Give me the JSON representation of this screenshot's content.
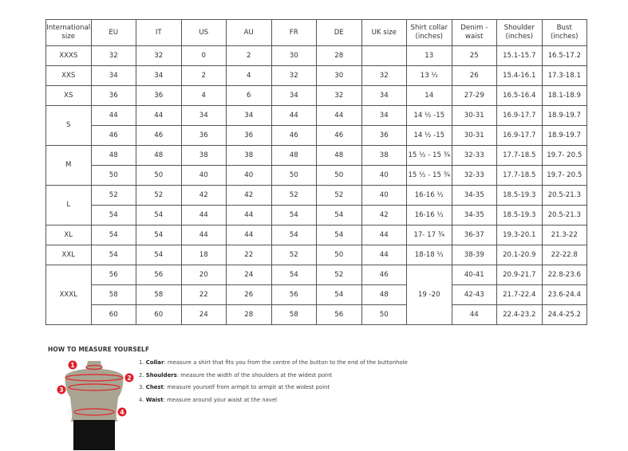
{
  "headers": [
    "International size",
    "EU",
    "IT",
    "US",
    "AU",
    "FR",
    "DE",
    "UK size",
    "Shirt collar (inches)",
    "Denim - waist",
    "Shoulder (inches)",
    "Bust (inches)"
  ],
  "groups": [
    {
      "size": "XXXS",
      "rows": [
        {
          "eu": "32",
          "it": "32",
          "us": "0",
          "au": "2",
          "fr": "30",
          "de": "28",
          "uk": "",
          "collar": "13",
          "waist": "25",
          "shoulder": "15.1-15.7",
          "bust": "16.5-17.2"
        }
      ]
    },
    {
      "size": "XXS",
      "rows": [
        {
          "eu": "34",
          "it": "34",
          "us": "2",
          "au": "4",
          "fr": "32",
          "de": "30",
          "uk": "32",
          "collar": "13 ½",
          "waist": "26",
          "shoulder": "15.4-16.1",
          "bust": "17.3-18.1"
        }
      ]
    },
    {
      "size": "XS",
      "rows": [
        {
          "eu": "36",
          "it": "36",
          "us": "4",
          "au": "6",
          "fr": "34",
          "de": "32",
          "uk": "34",
          "collar": "14",
          "waist": "27-29",
          "shoulder": "16.5-16.4",
          "bust": "18.1-18.9"
        }
      ]
    },
    {
      "size": "S",
      "rows": [
        {
          "eu": "44",
          "it": "44",
          "us": "34",
          "au": "34",
          "fr": "44",
          "de": "44",
          "uk": "34",
          "collar": "14 ½ -15",
          "waist": "30-31",
          "shoulder": "16.9-17.7",
          "bust": "18.9-19.7"
        },
        {
          "eu": "46",
          "it": "46",
          "us": "36",
          "au": "36",
          "fr": "46",
          "de": "46",
          "uk": "36",
          "collar": "14 ½ -15",
          "waist": "30-31",
          "shoulder": "16.9-17.7",
          "bust": "18.9-19.7"
        }
      ]
    },
    {
      "size": "M",
      "rows": [
        {
          "eu": "48",
          "it": "48",
          "us": "38",
          "au": "38",
          "fr": "48",
          "de": "48",
          "uk": "38",
          "collar": "15 ½ - 15 ¾",
          "waist": "32-33",
          "shoulder": "17.7-18.5",
          "bust": "19.7- 20.5"
        },
        {
          "eu": "50",
          "it": "50",
          "us": "40",
          "au": "40",
          "fr": "50",
          "de": "50",
          "uk": "40",
          "collar": "15 ½ - 15 ¾",
          "waist": "32-33",
          "shoulder": "17.7-18.5",
          "bust": "19.7- 20.5"
        }
      ]
    },
    {
      "size": "L",
      "rows": [
        {
          "eu": "52",
          "it": "52",
          "us": "42",
          "au": "42",
          "fr": "52",
          "de": "52",
          "uk": "40",
          "collar": "16-16 ½",
          "waist": "34-35",
          "shoulder": "18.5-19.3",
          "bust": "20.5-21.3"
        },
        {
          "eu": "54",
          "it": "54",
          "us": "44",
          "au": "44",
          "fr": "54",
          "de": "54",
          "uk": "42",
          "collar": "16-16 ½",
          "waist": "34-35",
          "shoulder": "18.5-19.3",
          "bust": "20.5-21.3"
        }
      ]
    },
    {
      "size": "XL",
      "rows": [
        {
          "eu": "54",
          "it": "54",
          "us": "44",
          "au": "44",
          "fr": "54",
          "de": "54",
          "uk": "44",
          "collar": "17- 17 ¾",
          "waist": "36-37",
          "shoulder": "19.3-20.1",
          "bust": "21.3-22"
        }
      ]
    },
    {
      "size": "XXL",
      "rows": [
        {
          "eu": "54",
          "it": "54",
          "us": "18",
          "au": "22",
          "fr": "52",
          "de": "50",
          "uk": "44",
          "collar": "18-18 ½",
          "waist": "38-39",
          "shoulder": "20.1-20.9",
          "bust": "22-22.8"
        }
      ]
    },
    {
      "size": "XXXL",
      "collar_merged": "19 -20",
      "rows": [
        {
          "eu": "56",
          "it": "56",
          "us": "20",
          "au": "24",
          "fr": "54",
          "de": "52",
          "uk": "46",
          "waist": "40-41",
          "shoulder": "20.9-21.7",
          "bust": "22.8-23.6"
        },
        {
          "eu": "58",
          "it": "58",
          "us": "22",
          "au": "26",
          "fr": "56",
          "de": "54",
          "uk": "48",
          "waist": "42-43",
          "shoulder": "21.7-22.4",
          "bust": "23.6-24.4"
        },
        {
          "eu": "60",
          "it": "60",
          "us": "24",
          "au": "28",
          "fr": "58",
          "de": "56",
          "uk": "50",
          "waist": "44",
          "shoulder": "22.4-23.2",
          "bust": "24.4-25.2"
        }
      ]
    }
  ],
  "howto": {
    "title": "HOW TO MEASURE YOURSELF",
    "markers": [
      "1",
      "2",
      "3",
      "4"
    ],
    "steps": [
      {
        "num": "1.",
        "term": "Collar",
        "text": ": measure a shirt that fits you from the centre of the button to the end of the buttonhole"
      },
      {
        "num": "2.",
        "term": "Shoulders",
        "text": ": measure the width of the shoulders at the widest point"
      },
      {
        "num": "3.",
        "term": "Chest",
        "text": ": measure yourself from armpit to armpit at the widest point"
      },
      {
        "num": "4.",
        "term": "Waist",
        "text": ": measure around your waist at the navel"
      }
    ]
  },
  "colors": {
    "marker": "#e0202a",
    "torso": "#a9a592",
    "shorts": "#111111"
  }
}
